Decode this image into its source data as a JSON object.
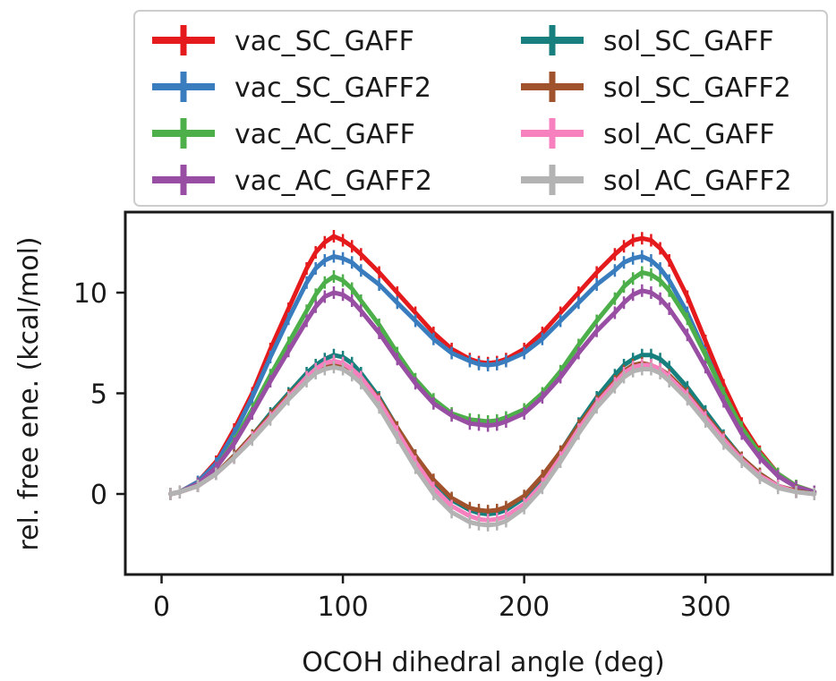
{
  "chart_data": {
    "type": "line",
    "title": "",
    "xlabel": "OCOH dihedral angle (deg)",
    "ylabel": "rel. free ene. (kcal/mol)",
    "xlim": [
      -20,
      370
    ],
    "ylim": [
      -4,
      14
    ],
    "xticks": [
      0,
      100,
      200,
      300
    ],
    "yticks": [
      0,
      5,
      10
    ],
    "xtick_labels": [
      "0",
      "100",
      "200",
      "300"
    ],
    "ytick_labels": [
      "0",
      "5",
      "10"
    ],
    "grid": false,
    "error_bars": true,
    "legend": {
      "placement": "above plot",
      "columns": 2
    },
    "x": [
      5,
      10,
      20,
      30,
      40,
      50,
      60,
      70,
      80,
      85,
      90,
      95,
      100,
      105,
      110,
      120,
      130,
      140,
      150,
      160,
      170,
      175,
      180,
      185,
      190,
      200,
      210,
      220,
      230,
      240,
      250,
      255,
      260,
      265,
      270,
      275,
      280,
      290,
      300,
      310,
      320,
      330,
      340,
      350,
      360
    ],
    "series": [
      {
        "name": "vac_SC_GAFF",
        "color": "#e41a1c",
        "values": [
          0,
          0.1,
          0.6,
          1.6,
          3.2,
          5.0,
          7.2,
          9.2,
          11.2,
          12.0,
          12.5,
          12.8,
          12.6,
          12.3,
          11.9,
          11.0,
          10.0,
          9.0,
          8.0,
          7.2,
          6.7,
          6.55,
          6.5,
          6.55,
          6.7,
          7.2,
          8.0,
          9.0,
          10.0,
          11.0,
          11.9,
          12.3,
          12.6,
          12.7,
          12.6,
          12.2,
          11.6,
          9.8,
          7.6,
          5.4,
          3.5,
          2.1,
          1.0,
          0.4,
          0.1
        ]
      },
      {
        "name": "vac_SC_GAFF2",
        "color": "#3a7dbf",
        "values": [
          0,
          0.1,
          0.6,
          1.5,
          3.0,
          4.8,
          6.8,
          8.7,
          10.5,
          11.2,
          11.6,
          11.8,
          11.7,
          11.5,
          11.1,
          10.4,
          9.5,
          8.6,
          7.7,
          7.0,
          6.6,
          6.45,
          6.4,
          6.45,
          6.6,
          7.0,
          7.7,
          8.6,
          9.5,
          10.4,
          11.1,
          11.5,
          11.7,
          11.8,
          11.6,
          11.2,
          10.6,
          9.0,
          7.0,
          5.0,
          3.2,
          1.9,
          0.9,
          0.35,
          0.1
        ]
      },
      {
        "name": "vac_AC_GAFF",
        "color": "#4daf4a",
        "values": [
          0,
          0.1,
          0.5,
          1.3,
          2.6,
          4.2,
          5.9,
          7.5,
          9.1,
          9.9,
          10.5,
          10.8,
          10.6,
          10.2,
          9.6,
          8.4,
          7.0,
          5.7,
          4.7,
          4.0,
          3.7,
          3.65,
          3.6,
          3.65,
          3.8,
          4.2,
          5.0,
          6.1,
          7.4,
          8.6,
          9.7,
          10.3,
          10.7,
          11.0,
          10.9,
          10.6,
          10.1,
          8.7,
          6.9,
          5.0,
          3.3,
          2.0,
          1.0,
          0.4,
          0.1
        ]
      },
      {
        "name": "vac_AC_GAFF2",
        "color": "#984ea3",
        "values": [
          0,
          0.1,
          0.5,
          1.3,
          2.5,
          4.0,
          5.6,
          7.1,
          8.6,
          9.3,
          9.8,
          10.0,
          9.9,
          9.6,
          9.1,
          8.0,
          6.7,
          5.5,
          4.5,
          3.9,
          3.5,
          3.45,
          3.4,
          3.45,
          3.6,
          4.0,
          4.8,
          5.8,
          7.0,
          8.1,
          9.0,
          9.5,
          9.9,
          10.1,
          10.0,
          9.7,
          9.2,
          7.9,
          6.3,
          4.6,
          3.0,
          1.8,
          0.9,
          0.35,
          0.1
        ]
      },
      {
        "name": "sol_SC_GAFF",
        "color": "#17807e",
        "values": [
          0,
          0.1,
          0.4,
          1.0,
          1.9,
          2.9,
          4.0,
          5.0,
          6.0,
          6.4,
          6.7,
          6.9,
          6.8,
          6.5,
          6.0,
          4.8,
          3.3,
          1.9,
          0.6,
          -0.3,
          -0.8,
          -0.95,
          -1.0,
          -0.95,
          -0.8,
          -0.2,
          0.8,
          2.1,
          3.5,
          4.8,
          5.9,
          6.4,
          6.7,
          6.9,
          6.9,
          6.7,
          6.3,
          5.3,
          4.1,
          2.9,
          1.8,
          1.0,
          0.4,
          0.15,
          0
        ]
      },
      {
        "name": "sol_SC_GAFF2",
        "color": "#a0522d",
        "values": [
          0,
          0.1,
          0.4,
          1.0,
          1.9,
          2.9,
          3.9,
          4.9,
          5.8,
          6.2,
          6.4,
          6.5,
          6.4,
          6.2,
          5.8,
          4.7,
          3.3,
          1.9,
          0.7,
          -0.2,
          -0.7,
          -0.8,
          -0.85,
          -0.8,
          -0.65,
          -0.1,
          0.9,
          2.1,
          3.4,
          4.6,
          5.6,
          6.1,
          6.4,
          6.5,
          6.4,
          6.2,
          5.9,
          5.0,
          3.9,
          2.8,
          1.8,
          1.0,
          0.4,
          0.15,
          0
        ]
      },
      {
        "name": "sol_AC_GAFF",
        "color": "#f781bf",
        "values": [
          0,
          0.1,
          0.4,
          1.0,
          1.8,
          2.8,
          3.8,
          4.8,
          5.8,
          6.2,
          6.5,
          6.6,
          6.5,
          6.2,
          5.8,
          4.6,
          3.1,
          1.6,
          0.3,
          -0.6,
          -1.1,
          -1.25,
          -1.3,
          -1.25,
          -1.1,
          -0.5,
          0.5,
          1.8,
          3.2,
          4.5,
          5.5,
          6.0,
          6.3,
          6.4,
          6.4,
          6.2,
          5.8,
          4.9,
          3.8,
          2.7,
          1.7,
          0.9,
          0.4,
          0.1,
          0
        ]
      },
      {
        "name": "sol_AC_GAFF2",
        "color": "#b3b3b3",
        "values": [
          0,
          0.1,
          0.4,
          1.0,
          1.8,
          2.7,
          3.7,
          4.7,
          5.6,
          6.0,
          6.2,
          6.3,
          6.2,
          5.9,
          5.5,
          4.3,
          2.8,
          1.3,
          0.0,
          -0.9,
          -1.4,
          -1.5,
          -1.55,
          -1.5,
          -1.35,
          -0.7,
          0.3,
          1.6,
          3.0,
          4.3,
          5.3,
          5.8,
          6.1,
          6.2,
          6.2,
          6.0,
          5.6,
          4.7,
          3.6,
          2.5,
          1.6,
          0.8,
          0.3,
          0.1,
          0
        ]
      }
    ]
  }
}
